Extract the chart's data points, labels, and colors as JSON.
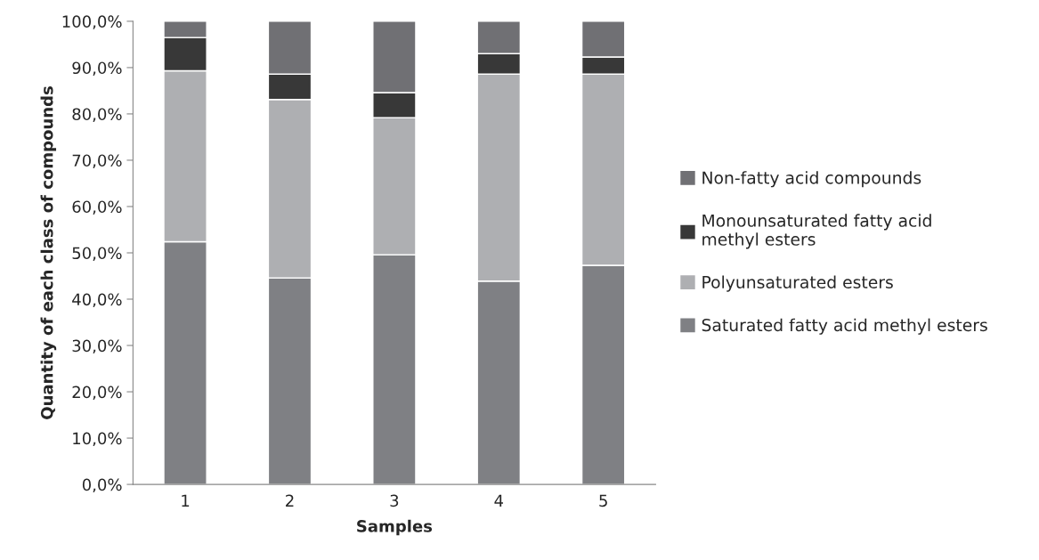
{
  "chart_data": {
    "type": "bar",
    "stacked": true,
    "xlabel": "Samples",
    "ylabel": "Quantity of each class of compounds",
    "categories": [
      "1",
      "2",
      "3",
      "4",
      "5"
    ],
    "series": [
      {
        "name": "Saturated fatty acid methyl esters",
        "color": "#7f8084",
        "values": [
          52.4,
          44.6,
          49.6,
          43.9,
          47.3
        ]
      },
      {
        "name": "Polyunsaturated esters",
        "color": "#aeafb2",
        "values": [
          36.9,
          38.5,
          29.6,
          44.7,
          41.3
        ]
      },
      {
        "name": "Monounsaturated fatty acid methyl esters",
        "color": "#383838",
        "values": [
          7.2,
          5.5,
          5.4,
          4.4,
          3.7
        ]
      },
      {
        "name": "Non-fatty acid compounds",
        "color": "#707074",
        "values": [
          3.5,
          11.4,
          15.4,
          7.0,
          7.7
        ]
      }
    ],
    "ylim": [
      0,
      100
    ],
    "yticks": [
      {
        "value": 0,
        "label": "0,0%"
      },
      {
        "value": 10,
        "label": "10,0%"
      },
      {
        "value": 20,
        "label": "20,0%"
      },
      {
        "value": 30,
        "label": "30,0%"
      },
      {
        "value": 40,
        "label": "40,0%"
      },
      {
        "value": 50,
        "label": "50,0%"
      },
      {
        "value": 60,
        "label": "60,0%"
      },
      {
        "value": 70,
        "label": "70,0%"
      },
      {
        "value": 80,
        "label": "80,0%"
      },
      {
        "value": 90,
        "label": "90,0%"
      },
      {
        "value": 100,
        "label": "100,0%"
      }
    ],
    "grid": false,
    "legend": "right"
  }
}
